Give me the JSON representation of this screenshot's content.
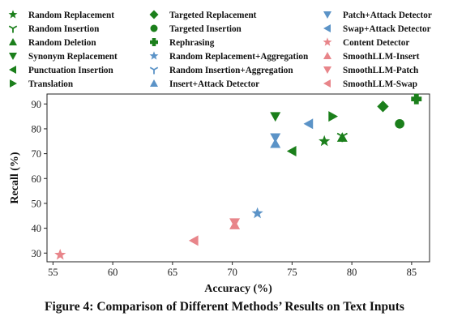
{
  "colors": {
    "green": "#1b7f1b",
    "blue": "#5b93c7",
    "pink": "#e8858a"
  },
  "chart_data": {
    "type": "scatter",
    "xlabel": "Accuracy (%)",
    "ylabel": "Recall (%)",
    "xlim": [
      54.5,
      86.5
    ],
    "ylim": [
      26.5,
      94
    ],
    "xticks": [
      55,
      60,
      65,
      70,
      75,
      80,
      85
    ],
    "yticks": [
      30,
      40,
      50,
      60,
      70,
      80,
      90
    ],
    "grid": false,
    "legend_position": "top",
    "series": [
      {
        "name": "Random Replacement",
        "marker": "star",
        "color": "green",
        "points": [
          [
            77.7,
            75
          ]
        ]
      },
      {
        "name": "Random Insertion",
        "marker": "tri_y",
        "color": "green",
        "points": [
          [
            79.2,
            77
          ]
        ]
      },
      {
        "name": "Random Deletion",
        "marker": "triangle-up",
        "color": "green",
        "points": [
          [
            79.2,
            76.5
          ]
        ]
      },
      {
        "name": "Synonym Replacement",
        "marker": "triangle-down",
        "color": "green",
        "points": [
          [
            73.6,
            85
          ]
        ]
      },
      {
        "name": "Punctuation Insertion",
        "marker": "triangle-left",
        "color": "green",
        "points": [
          [
            75,
            71
          ]
        ]
      },
      {
        "name": "Translation",
        "marker": "triangle-right",
        "color": "green",
        "points": [
          [
            78.4,
            85
          ]
        ]
      },
      {
        "name": "Targeted Replacement",
        "marker": "diamond",
        "color": "green",
        "points": [
          [
            82.6,
            89
          ]
        ]
      },
      {
        "name": "Targeted Insertion",
        "marker": "circle",
        "color": "green",
        "points": [
          [
            84,
            82
          ]
        ]
      },
      {
        "name": "Rephrasing",
        "marker": "plus",
        "color": "green",
        "points": [
          [
            85.4,
            92
          ]
        ]
      },
      {
        "name": "Random Replacement+Aggregation",
        "marker": "star",
        "color": "blue",
        "points": [
          [
            72.1,
            46
          ]
        ]
      },
      {
        "name": "Random Insertion+Aggregation",
        "marker": "tri_y",
        "color": "blue",
        "points": []
      },
      {
        "name": "Insert+Attack Detector",
        "marker": "triangle-up",
        "color": "blue",
        "points": [
          [
            73.6,
            74
          ]
        ]
      },
      {
        "name": "Patch+Attack Detector",
        "marker": "triangle-down",
        "color": "blue",
        "points": [
          [
            73.6,
            76.5
          ]
        ]
      },
      {
        "name": "Swap+Attack Detector",
        "marker": "triangle-left",
        "color": "blue",
        "points": [
          [
            76.4,
            82
          ]
        ]
      },
      {
        "name": "Content Detector",
        "marker": "star",
        "color": "pink",
        "points": [
          [
            55.6,
            29.3
          ]
        ]
      },
      {
        "name": "SmoothLLM-Insert",
        "marker": "triangle-up",
        "color": "pink",
        "points": [
          [
            70.2,
            41.3
          ]
        ]
      },
      {
        "name": "SmoothLLM-Patch",
        "marker": "triangle-down",
        "color": "pink",
        "points": [
          [
            70.2,
            42.3
          ]
        ]
      },
      {
        "name": "SmoothLLM-Swap",
        "marker": "triangle-left",
        "color": "pink",
        "points": [
          [
            66.8,
            35
          ]
        ]
      }
    ]
  },
  "caption": "Figure 4: Comparison of Different Methods’ Results on Text Inputs"
}
